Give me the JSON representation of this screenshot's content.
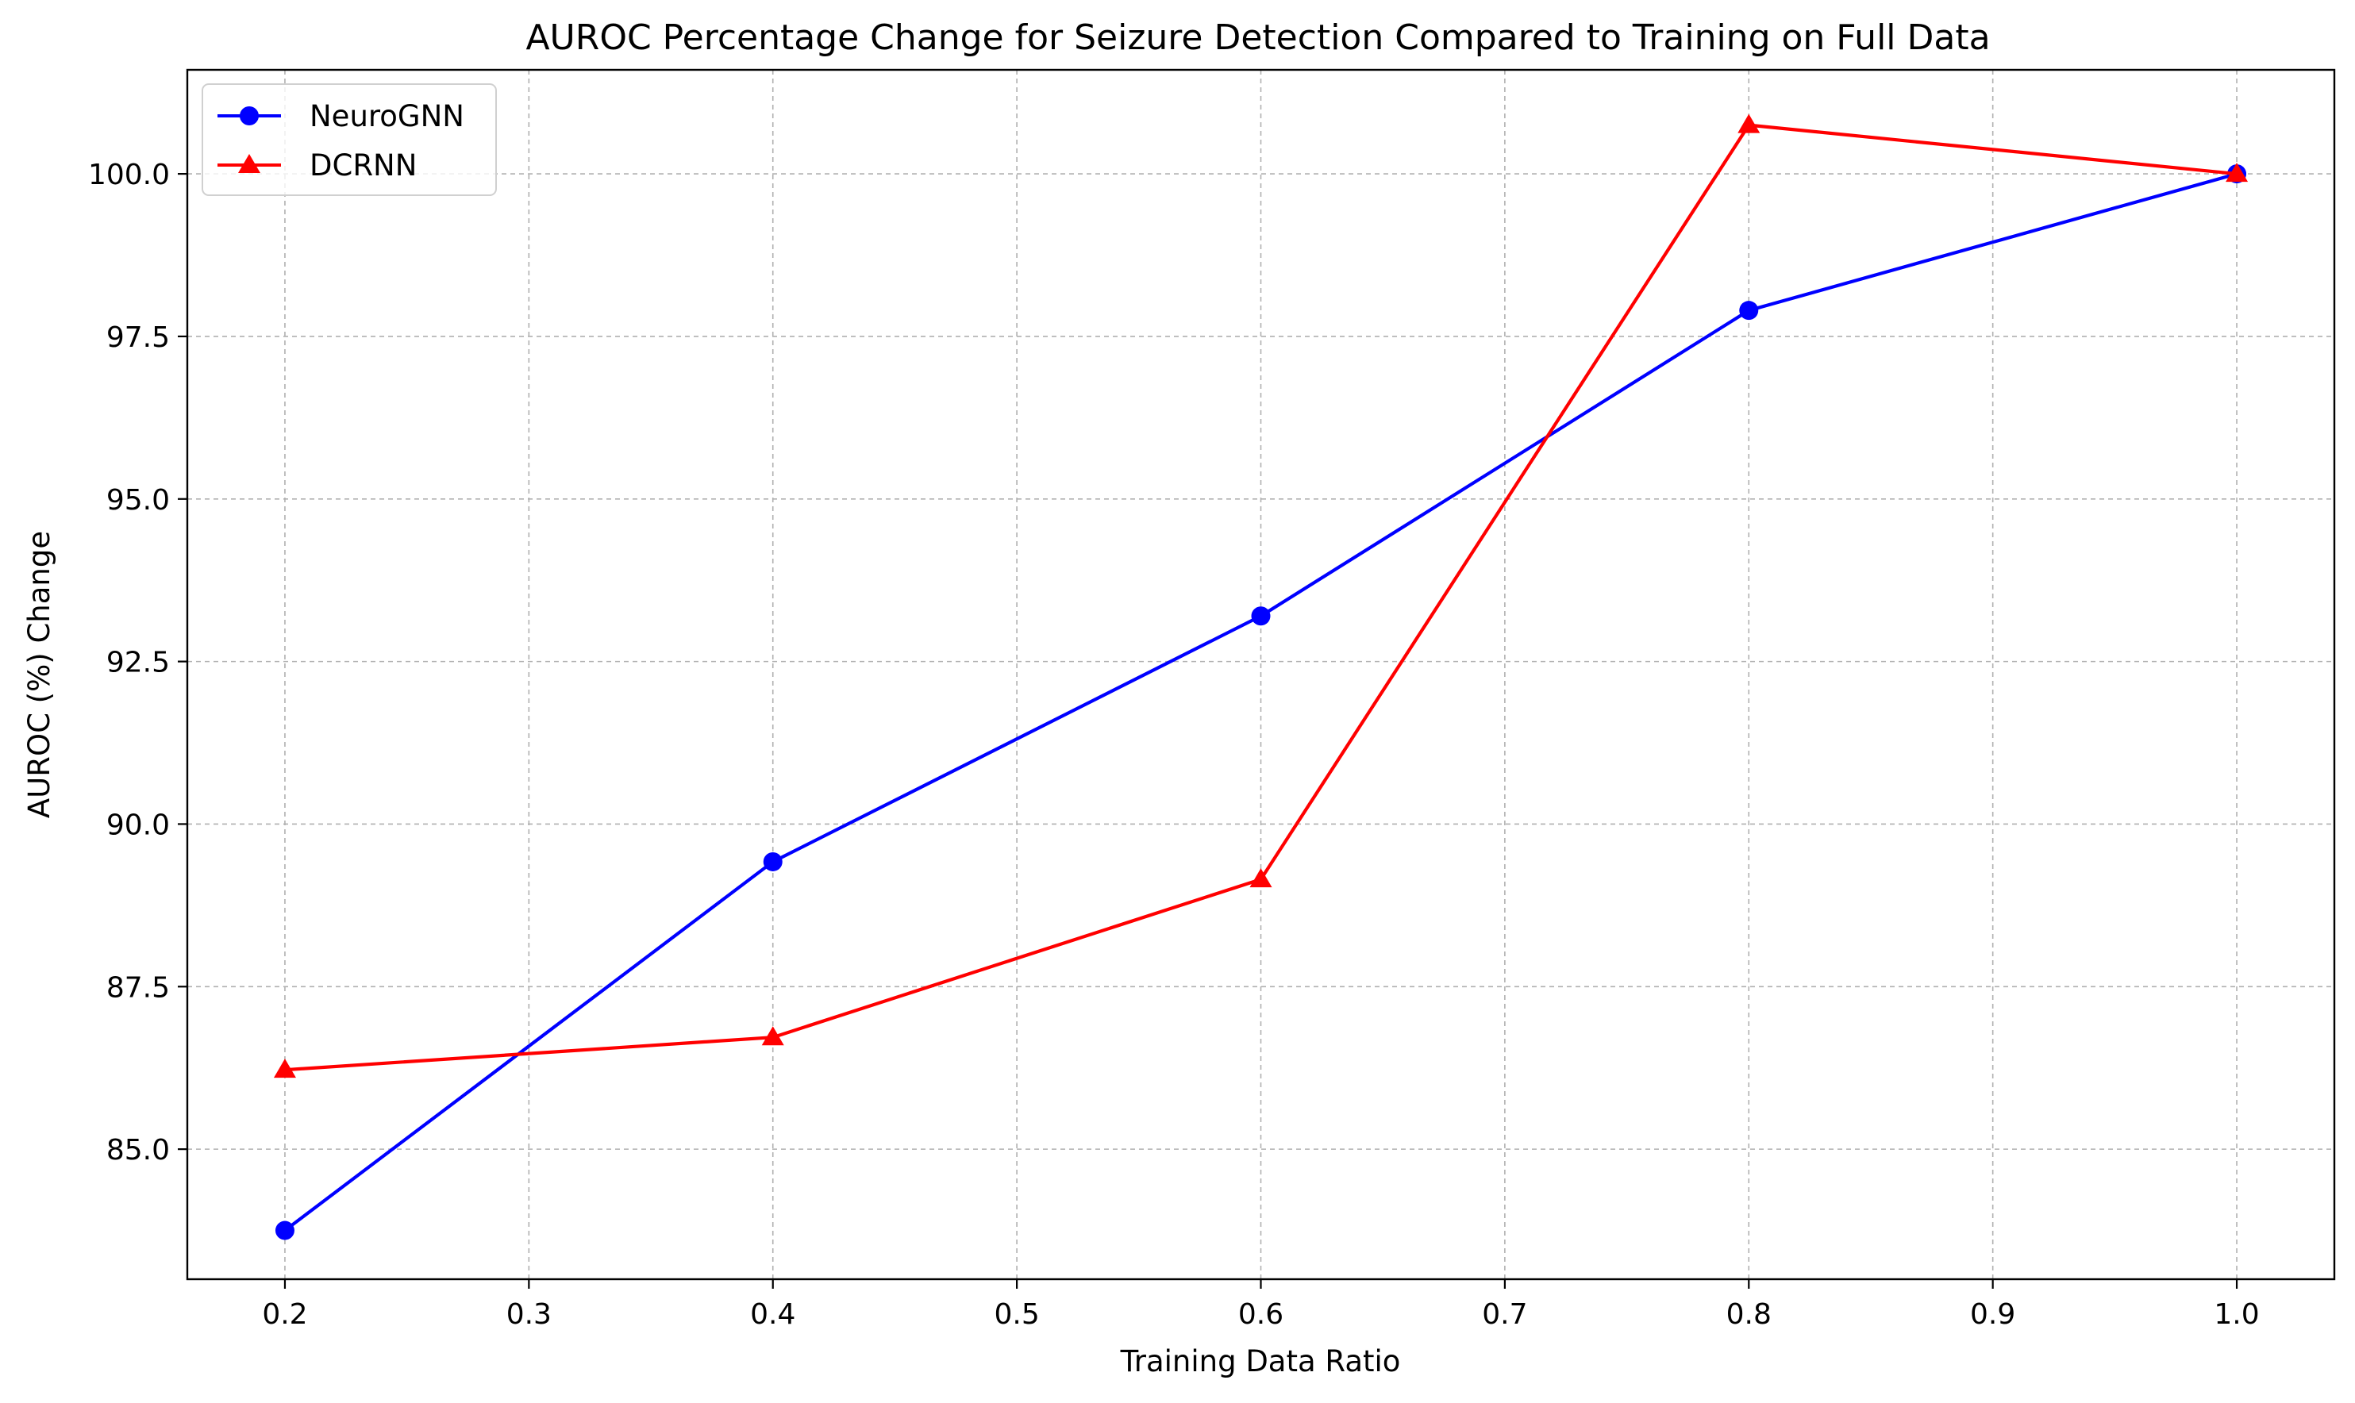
{
  "chart_data": {
    "type": "line",
    "title": "AUROC Percentage Change for Seizure Detection Compared to Training on Full Data",
    "xlabel": "Training Data Ratio",
    "ylabel": "AUROC (%) Change",
    "xlim": [
      0.16,
      1.04
    ],
    "ylim": [
      83.0,
      101.6
    ],
    "xticks": [
      0.2,
      0.3,
      0.4,
      0.5,
      0.6,
      0.7,
      0.8,
      0.9,
      1.0
    ],
    "xtick_labels": [
      "0.2",
      "0.3",
      "0.4",
      "0.5",
      "0.6",
      "0.7",
      "0.8",
      "0.9",
      "1.0"
    ],
    "yticks": [
      85.0,
      87.5,
      90.0,
      92.5,
      95.0,
      97.5,
      100.0
    ],
    "ytick_labels": [
      "85.0",
      "87.5",
      "90.0",
      "92.5",
      "95.0",
      "97.5",
      "100.0"
    ],
    "grid": true,
    "legend_position": "top-left",
    "x": [
      0.2,
      0.4,
      0.6,
      0.8,
      1.0
    ],
    "series": [
      {
        "name": "NeuroGNN",
        "values": [
          83.75,
          89.42,
          93.2,
          97.9,
          100.0
        ],
        "color": "#0000ff",
        "marker": "circle"
      },
      {
        "name": "DCRNN",
        "values": [
          86.22,
          86.72,
          89.15,
          100.75,
          100.0
        ],
        "color": "#ff0000",
        "marker": "triangle"
      }
    ]
  }
}
